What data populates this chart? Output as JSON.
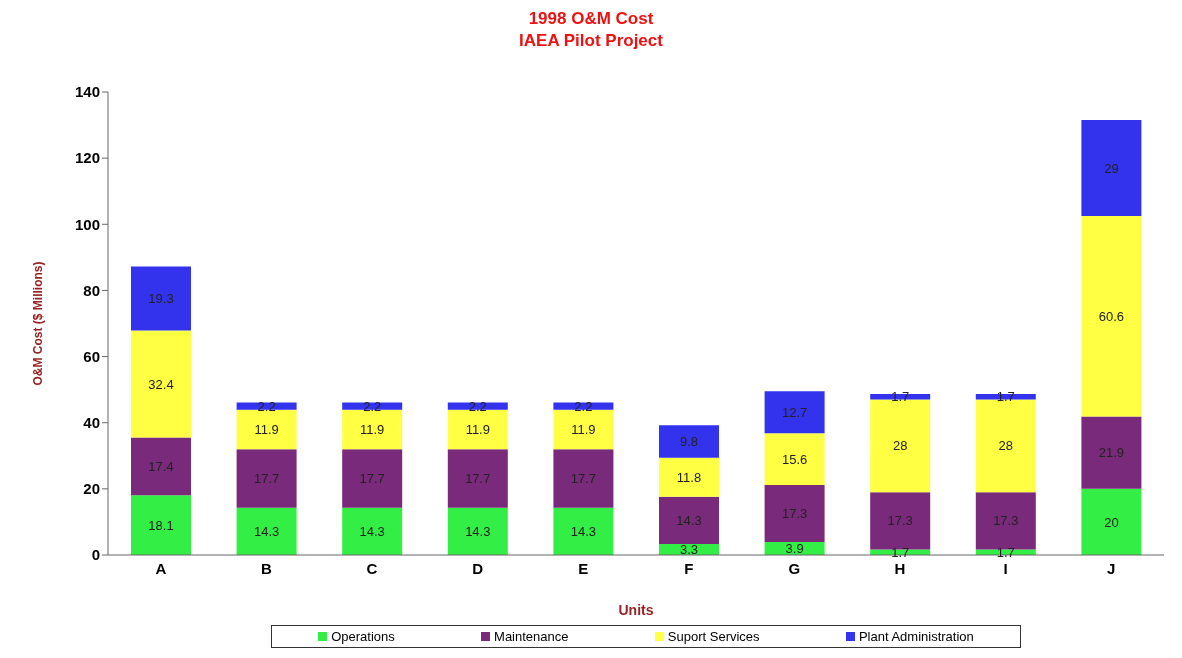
{
  "chart_data": {
    "type": "bar",
    "title": "1998 O&M Cost",
    "subtitle": "IAEA Pilot Project",
    "xlabel": "Units",
    "ylabel": "O&M Cost ($ Millions)",
    "categories": [
      "A",
      "B",
      "C",
      "D",
      "E",
      "F",
      "G",
      "H",
      "I",
      "J"
    ],
    "series": [
      {
        "name": "Operations",
        "color": "#33ee44",
        "values": [
          18.1,
          14.3,
          14.3,
          14.3,
          14.3,
          3.3,
          3.9,
          1.7,
          1.7,
          20
        ]
      },
      {
        "name": "Maintenance",
        "color": "#7a2a7a",
        "values": [
          17.4,
          17.7,
          17.7,
          17.7,
          17.7,
          14.3,
          17.3,
          17.3,
          17.3,
          21.9
        ]
      },
      {
        "name": "Suport Services",
        "color": "#ffff44",
        "values": [
          32.4,
          11.9,
          11.9,
          11.9,
          11.9,
          11.8,
          15.6,
          28,
          28,
          60.6
        ]
      },
      {
        "name": "Plant Administration",
        "color": "#3333ee",
        "values": [
          19.3,
          2.2,
          2.2,
          2.2,
          2.2,
          9.8,
          12.7,
          1.7,
          1.7,
          29
        ]
      }
    ],
    "stacked": true,
    "data_labels": true,
    "ylim": [
      0,
      140
    ],
    "yticks": [
      0,
      20,
      40,
      60,
      80,
      100,
      120,
      140
    ],
    "grid": false,
    "legend": "bottom"
  }
}
